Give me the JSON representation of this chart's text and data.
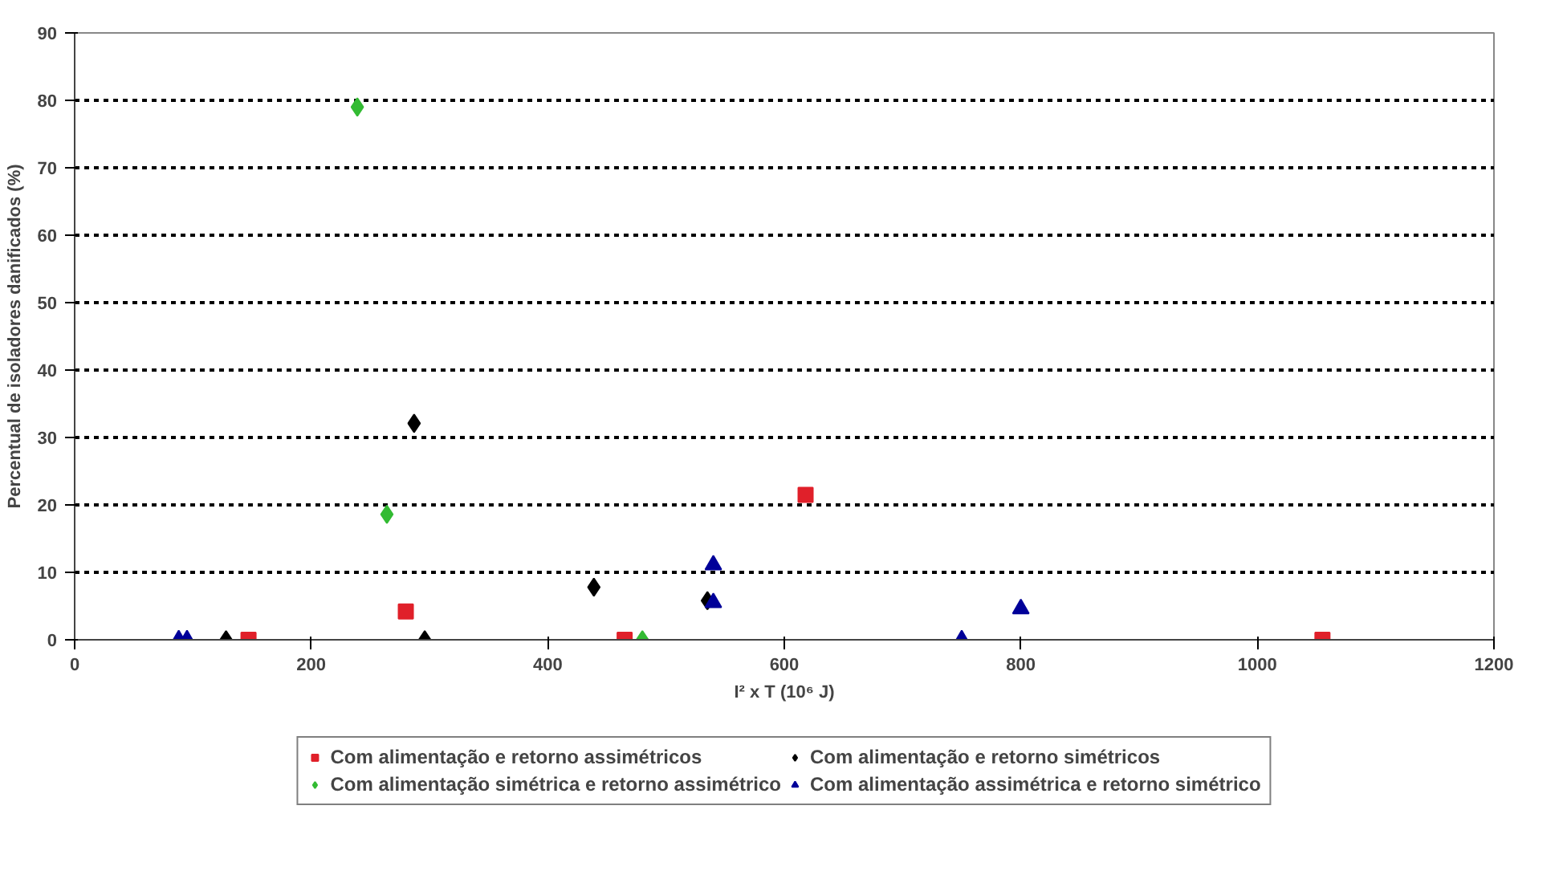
{
  "chart_data": {
    "type": "scatter",
    "xlabel": "I² x T (10⁶ J)",
    "ylabel": "Percentual de isoladores danificados (%)",
    "xlim": [
      0,
      1200
    ],
    "xticks": [
      0,
      200,
      400,
      600,
      800,
      1000,
      1200
    ],
    "ylim": [
      0,
      90
    ],
    "yticks": [
      0,
      10,
      20,
      30,
      40,
      50,
      60,
      70,
      80,
      90
    ],
    "grid": "y",
    "legend": "bottom",
    "series": [
      {
        "name": "Com alimentação e retorno assimétricos",
        "color": "#e0202a",
        "marker": "square",
        "x": [
          147,
          280,
          465,
          618,
          1055
        ],
        "values": [
          0,
          4.2,
          0,
          21.5,
          0
        ]
      },
      {
        "name": "Com alimentação e retorno simétricos",
        "color": "#000000",
        "marker": "diamond",
        "x": [
          128,
          287,
          296,
          439,
          535
        ],
        "values": [
          0,
          32.1,
          0,
          7.8,
          5.8
        ]
      },
      {
        "name": "Com alimentação simétrica e retorno assimétrico",
        "color": "#33bb33",
        "marker": "diamond",
        "x": [
          239,
          264,
          480
        ],
        "values": [
          79,
          18.6,
          0
        ]
      },
      {
        "name": "Com alimentação assimétrica e retorno simétrico",
        "color": "#000099",
        "marker": "triangle",
        "x": [
          88,
          95,
          540,
          540,
          750,
          800
        ],
        "values": [
          0,
          0,
          11.1,
          5.5,
          0,
          4.6
        ]
      }
    ]
  }
}
